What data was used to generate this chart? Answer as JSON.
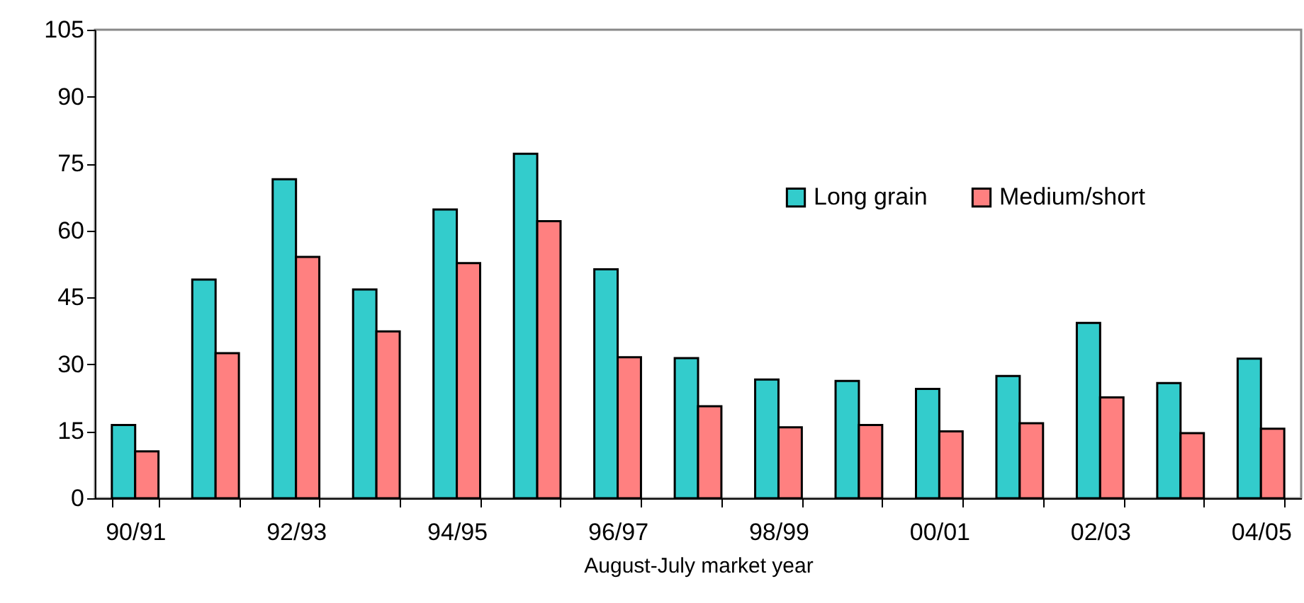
{
  "chart_data": {
    "type": "bar",
    "xlabel": "August-July market year",
    "categories": [
      "90/91",
      null,
      "92/93",
      null,
      "94/95",
      null,
      "96/97",
      null,
      "98/99",
      null,
      "00/01",
      null,
      "02/03",
      null,
      "04/05"
    ],
    "series": [
      {
        "name": "Long grain",
        "color": "#33cccc",
        "values": [
          16.4,
          49.0,
          71.5,
          46.8,
          64.7,
          77.2,
          51.3,
          31.4,
          26.6,
          26.3,
          24.5,
          27.4,
          39.3,
          25.8,
          31.3
        ]
      },
      {
        "name": "Medium/short",
        "color": "#ff8080",
        "values": [
          10.5,
          32.5,
          54.1,
          37.4,
          52.7,
          62.1,
          31.6,
          20.6,
          15.9,
          16.4,
          15.0,
          16.8,
          22.6,
          14.6,
          15.6
        ]
      }
    ],
    "ylim": [
      0,
      105
    ],
    "yticks": [
      0,
      15,
      30,
      45,
      60,
      75,
      90,
      105
    ],
    "grid": false,
    "legend": "top right"
  }
}
